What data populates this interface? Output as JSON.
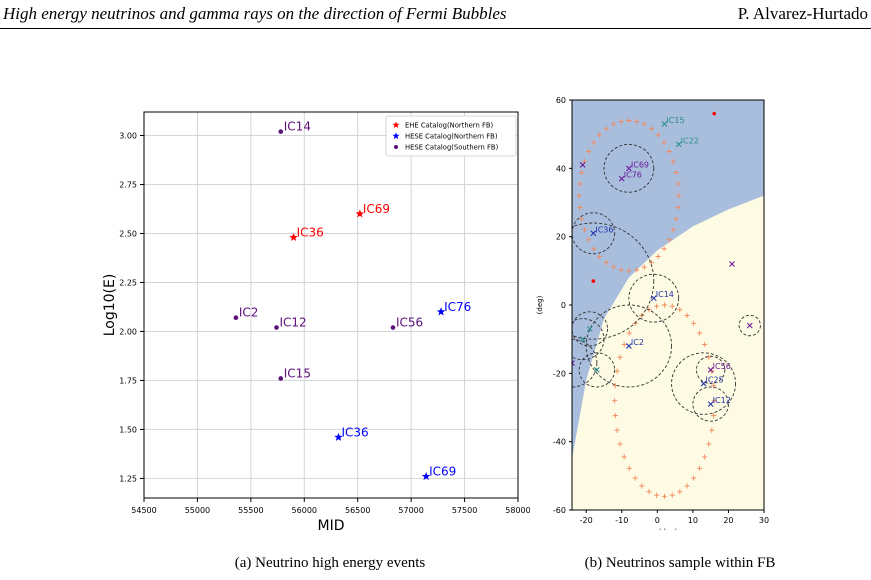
{
  "header": {
    "title": "High energy neutrinos and gamma rays on the direction of Fermi Bubbles",
    "author": "P. Alvarez-Hurtado"
  },
  "captions": {
    "a": "(a) Neutrino high energy events",
    "b": "(b) Neutrinos sample within FB"
  },
  "chart_data": [
    {
      "type": "scatter",
      "title": "",
      "xlabel": "MJD",
      "ylabel": "Log10(E)",
      "xlim": [
        54500,
        58000
      ],
      "ylim": [
        1.15,
        3.12
      ],
      "xticks": [
        "54500",
        "55000",
        "55500",
        "56000",
        "56500",
        "57000",
        "57500",
        "58000"
      ],
      "yticks": [
        "1.25",
        "1.50",
        "1.75",
        "2.00",
        "2.25",
        "2.50",
        "2.75",
        "3.00"
      ],
      "grid": true,
      "legend_position": "top-right",
      "legend": [
        {
          "label": "EHE Catalog(Northern FB)",
          "marker": "star",
          "color": "#ff0000"
        },
        {
          "label": "HESE Catalog(Northern FB)",
          "marker": "star",
          "color": "#0000ff"
        },
        {
          "label": "HESE Catalog(Southern FB)",
          "marker": "dot",
          "color": "#5c0f7a"
        }
      ],
      "points": [
        {
          "label": "IC14",
          "x": 55780,
          "y": 3.02,
          "marker": "dot",
          "color": "#5c0f7a"
        },
        {
          "label": "IC69",
          "x": 56520,
          "y": 2.6,
          "marker": "star",
          "color": "#ff0000"
        },
        {
          "label": "IC36",
          "x": 55900,
          "y": 2.48,
          "marker": "star",
          "color": "#ff0000"
        },
        {
          "label": "IC2",
          "x": 55360,
          "y": 2.07,
          "marker": "dot",
          "color": "#5c0f7a"
        },
        {
          "label": "IC12",
          "x": 55740,
          "y": 2.02,
          "marker": "dot",
          "color": "#5c0f7a"
        },
        {
          "label": "IC56",
          "x": 56830,
          "y": 2.02,
          "marker": "dot",
          "color": "#5c0f7a"
        },
        {
          "label": "IC76",
          "x": 57280,
          "y": 2.1,
          "marker": "star",
          "color": "#0000ff"
        },
        {
          "label": "IC15",
          "x": 55780,
          "y": 1.76,
          "marker": "dot",
          "color": "#5c0f7a"
        },
        {
          "label": "IC36",
          "x": 56320,
          "y": 1.46,
          "marker": "star",
          "color": "#0000ff"
        },
        {
          "label": "IC69",
          "x": 57140,
          "y": 1.26,
          "marker": "star",
          "color": "#0000ff"
        }
      ]
    },
    {
      "type": "scatter",
      "title": "",
      "xlabel": "(deg)",
      "ylabel": "(deg)",
      "xlim": [
        -24,
        30
      ],
      "ylim": [
        -60,
        60
      ],
      "xticks": [
        "-20",
        "-10",
        "0",
        "10",
        "20",
        "30"
      ],
      "yticks": [
        "-60",
        "-40",
        "-20",
        "0",
        "20",
        "40",
        "60"
      ],
      "colors": {
        "north_region": "#a9bedd",
        "south_region": "#fdfbe3",
        "boundary": "#f4875a",
        "circle": "#333333"
      },
      "events": [
        {
          "label": "IC15",
          "x": 2,
          "y": 53,
          "marker": "x",
          "color": "#2a8c8c",
          "r": 0
        },
        {
          "label": "IC22",
          "x": 6,
          "y": 47,
          "marker": "x",
          "color": "#2a8c8c",
          "r": 0
        },
        {
          "label": "IC69",
          "x": -8,
          "y": 40,
          "marker": "x",
          "color": "#6a1b9a",
          "r": 7
        },
        {
          "label": "IC76",
          "x": -10,
          "y": 37,
          "marker": "x",
          "color": "#6a1b9a",
          "r": 0
        },
        {
          "label": "IC36",
          "x": -18,
          "y": 21,
          "marker": "x",
          "color": "#2233aa",
          "r": 6
        },
        {
          "label": "IC14",
          "x": -1,
          "y": 2,
          "marker": "x",
          "color": "#2233aa",
          "r": 7
        },
        {
          "label": "IC2",
          "x": -8,
          "y": -12,
          "marker": "x",
          "color": "#2233aa",
          "r": 12
        },
        {
          "label": "IC56",
          "x": 15,
          "y": -19,
          "marker": "x",
          "color": "#6a1b9a",
          "r": 4
        },
        {
          "label": "IC25",
          "x": 13,
          "y": -23,
          "marker": "x",
          "color": "#2233aa",
          "r": 9
        },
        {
          "label": "IC12",
          "x": 15,
          "y": -29,
          "marker": "x",
          "color": "#2233aa",
          "r": 5
        },
        {
          "label": "",
          "x": -21,
          "y": 41,
          "marker": "x",
          "color": "#6a1b9a",
          "r": 0
        },
        {
          "label": "",
          "x": 21,
          "y": 12,
          "marker": "x",
          "color": "#6a1b9a",
          "r": 0
        },
        {
          "label": "",
          "x": 26,
          "y": -6,
          "marker": "x",
          "color": "#6a1b9a",
          "r": 3
        },
        {
          "label": "",
          "x": -19,
          "y": -7,
          "marker": "x",
          "color": "#2a8c8c",
          "r": 5
        },
        {
          "label": "",
          "x": -21,
          "y": -10,
          "marker": "x",
          "color": "#2a8c8c",
          "r": 6
        },
        {
          "label": "",
          "x": -24,
          "y": -17,
          "marker": "x",
          "color": "#6a1b9a",
          "r": 7
        },
        {
          "label": "",
          "x": -17,
          "y": -19,
          "marker": "x",
          "color": "#2a8c8c",
          "r": 5
        },
        {
          "label": "",
          "x": -18,
          "y": 7,
          "marker": "dot",
          "color": "#ff0000",
          "r": 17
        },
        {
          "label": "",
          "x": 16,
          "y": 56,
          "marker": "dot",
          "color": "#ff0000",
          "r": 0
        }
      ]
    }
  ]
}
